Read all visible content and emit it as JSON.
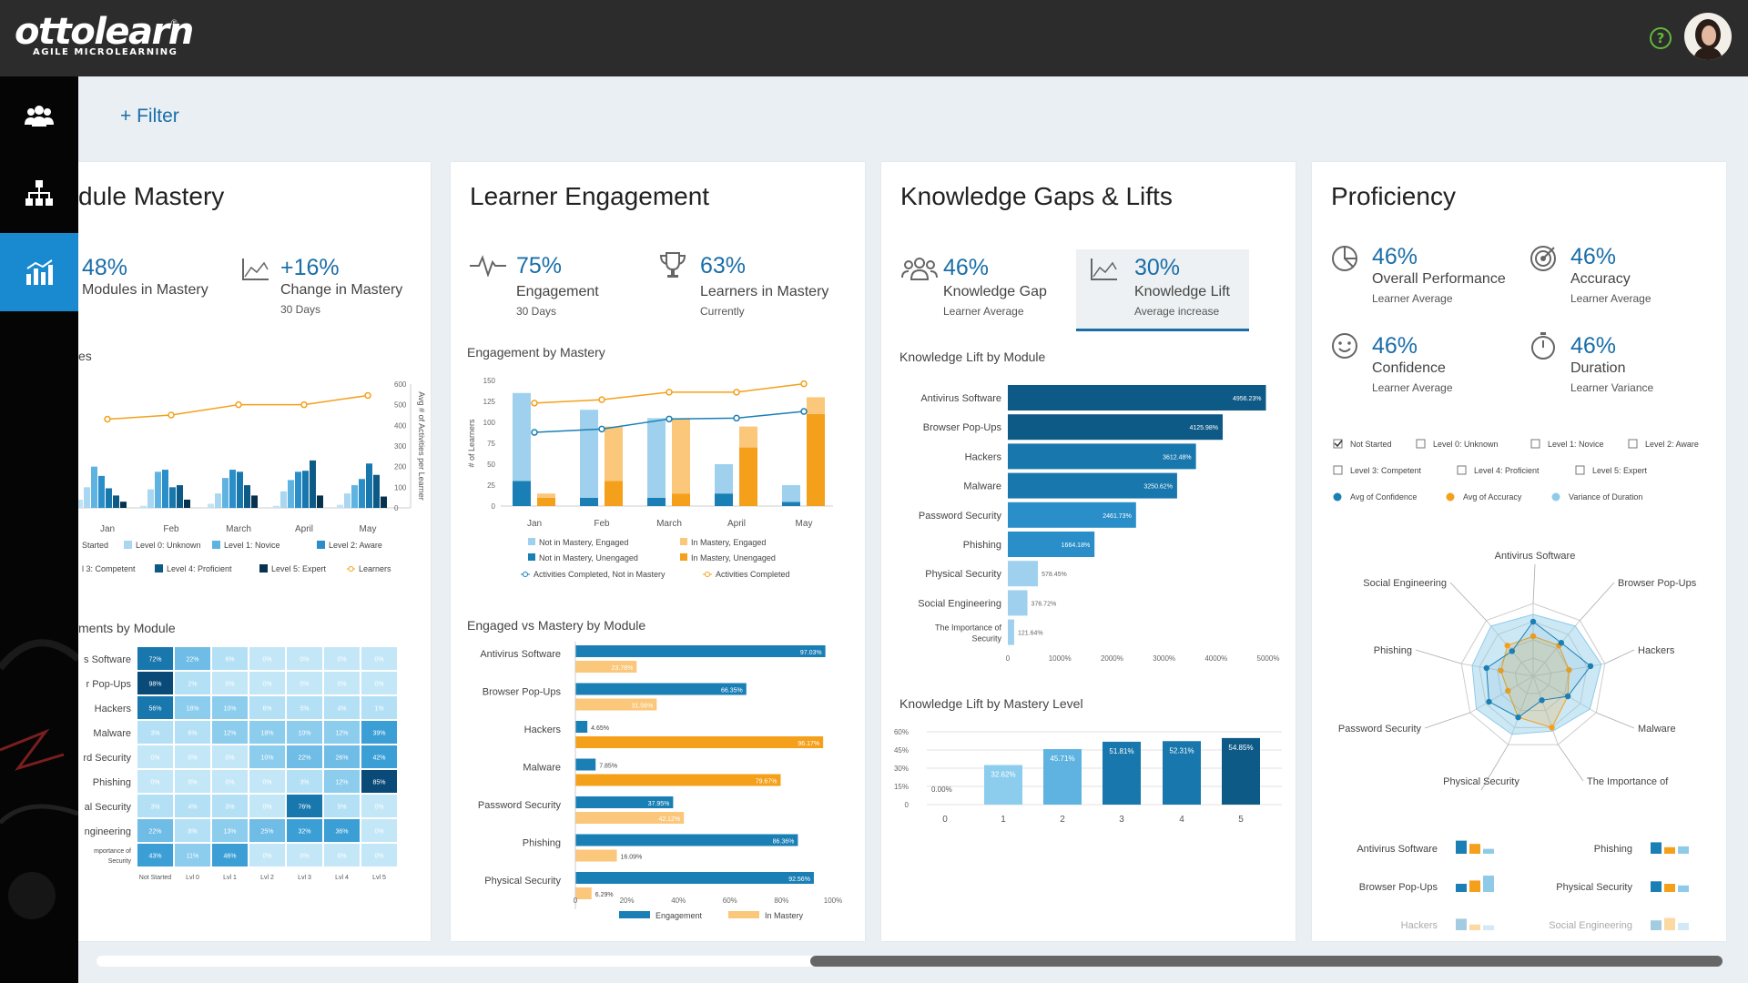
{
  "app": {
    "logo": "ottolearn",
    "logo_reg": "®",
    "tagline": "AGILE MICROLEARNING",
    "help_label": "?"
  },
  "sidebar": {
    "items": [
      {
        "icon": "users-icon"
      },
      {
        "icon": "org-chart-icon"
      },
      {
        "icon": "analytics-icon",
        "active": true
      }
    ]
  },
  "toolbar": {
    "filter_label": "+ Filter"
  },
  "mastery": {
    "title": "dule Mastery",
    "stat1": {
      "value": "48%",
      "label": "Modules in Mastery"
    },
    "stat2": {
      "value": "+16%",
      "label": "Change in Mastery",
      "sub": "30 Days"
    },
    "chart_title": "es",
    "heat_title": "ments by Module",
    "chart_data": [
      {
        "type": "bar",
        "title": "",
        "x": [
          "Jan",
          "Feb",
          "March",
          "April",
          "May"
        ],
        "ylabel_right": "Avg # of Activities per Learner",
        "ylim": [
          0,
          600
        ],
        "y2_ticks": [
          "0",
          "100",
          "200",
          "300",
          "400",
          "500",
          "600"
        ],
        "legend": [
          "Started",
          "Level 0: Unknown",
          "Level 1: Novice",
          "Level 2: Aware",
          "l 3: Competent",
          "Level 4: Proficient",
          "Level 5: Expert",
          "Learners"
        ],
        "series": [
          {
            "name": "Started",
            "values": [
              40,
              10,
              20,
              10,
              15
            ]
          },
          {
            "name": "Level 0: Unknown",
            "values": [
              100,
              90,
              70,
              80,
              70
            ]
          },
          {
            "name": "Level 1: Novice",
            "values": [
              200,
              175,
              145,
              135,
              110
            ]
          },
          {
            "name": "Level 2: Aware",
            "values": [
              155,
              185,
              185,
              175,
              140
            ]
          },
          {
            "name": "l 3: Competent",
            "values": [
              95,
              100,
              175,
              180,
              215
            ]
          },
          {
            "name": "Level 4: Proficient",
            "values": [
              60,
              110,
              110,
              230,
              160
            ]
          },
          {
            "name": "Level 5: Expert",
            "values": [
              30,
              40,
              60,
              60,
              55
            ]
          },
          {
            "name": "Learners",
            "values": [
              430,
              450,
              500,
              500,
              545
            ]
          }
        ]
      },
      {
        "type": "heatmap",
        "title": "",
        "x": [
          "Not Started",
          "Lvl 0",
          "Lvl 1",
          "Lvl 2",
          "Lvl 3",
          "Lvl 4",
          "Lvl 5"
        ],
        "y": [
          "s Software",
          "r Pop-Ups",
          "Hackers",
          "Malware",
          "rd Security",
          "Phishing",
          "al Security",
          "ngineering",
          "mportance of Security"
        ],
        "cells": [
          [
            "72%",
            "22%",
            "6%",
            "0%",
            "0%",
            "0%",
            "0%"
          ],
          [
            "98%",
            "2%",
            "0%",
            "0%",
            "0%",
            "0%",
            "0%"
          ],
          [
            "56%",
            "18%",
            "10%",
            "6%",
            "5%",
            "4%",
            "1%"
          ],
          [
            "3%",
            "6%",
            "12%",
            "18%",
            "10%",
            "12%",
            "39%"
          ],
          [
            "0%",
            "0%",
            "0%",
            "10%",
            "22%",
            "26%",
            "42%"
          ],
          [
            "0%",
            "0%",
            "0%",
            "0%",
            "3%",
            "12%",
            "85%"
          ],
          [
            "3%",
            "4%",
            "3%",
            "0%",
            "76%",
            "5%",
            "0%"
          ],
          [
            "22%",
            "8%",
            "13%",
            "25%",
            "32%",
            "36%",
            "0%"
          ],
          [
            "43%",
            "11%",
            "46%",
            "0%",
            "0%",
            "0%",
            "0%"
          ]
        ]
      }
    ]
  },
  "engagement": {
    "title": "Learner Engagement",
    "stat1": {
      "value": "75%",
      "label": "Engagement",
      "sub": "30 Days"
    },
    "stat2": {
      "value": "63%",
      "label": "Learners in Mastery",
      "sub": "Currently"
    },
    "chart1_title": "Engagement by Mastery",
    "chart2_title": "Engaged vs Mastery by Module",
    "chart_data": [
      {
        "type": "bar",
        "title": "",
        "x": [
          "Jan",
          "Feb",
          "March",
          "April",
          "May"
        ],
        "ylabel": "# of Learners",
        "y_ticks": [
          "0",
          "25",
          "50",
          "75",
          "100",
          "125",
          "150"
        ],
        "ylim": [
          0,
          150
        ],
        "legend": [
          "Not in Mastery, Engaged",
          "Not in Mastery, Unengaged",
          "Activities Completed, Not in Mastery",
          "In Mastery, Engaged",
          "In Mastery, Unengaged",
          "Activities Completed"
        ],
        "series": [
          {
            "name": "Not in Mastery, Unengaged",
            "values": [
              30,
              10,
              10,
              15,
              5
            ]
          },
          {
            "name": "Not in Mastery, Engaged",
            "values": [
              105,
              105,
              95,
              35,
              20
            ]
          },
          {
            "name": "In Mastery, Unengaged",
            "values": [
              10,
              30,
              15,
              70,
              110
            ]
          },
          {
            "name": "In Mastery, Engaged",
            "values": [
              5,
              65,
              90,
              25,
              20
            ]
          },
          {
            "name": "Activities Completed, Not in Mastery",
            "values": [
              88,
              92,
              104,
              105,
              113
            ]
          },
          {
            "name": "Activities Completed",
            "values": [
              123,
              127,
              136,
              136,
              146
            ]
          }
        ]
      },
      {
        "type": "bar",
        "title": "",
        "orientation": "horizontal",
        "categories": [
          "Antivirus Software",
          "Browser Pop-Ups",
          "Hackers",
          "Malware",
          "Password Security",
          "Phishing",
          "Physical Security"
        ],
        "x_ticks": [
          "0",
          "20%",
          "40%",
          "60%",
          "80%",
          "100%"
        ],
        "legend": [
          "Engagement",
          "In Mastery"
        ],
        "series": [
          {
            "name": "Engagement",
            "values": [
              97.03,
              66.35,
              4.65,
              7.85,
              37.95,
              86.36,
              92.56
            ],
            "labels": [
              "97.03%",
              "66.35%",
              "4.65%",
              "7.85%",
              "37.95%",
              "86.36%",
              "92.56%"
            ]
          },
          {
            "name": "In Mastery",
            "values": [
              23.78,
              31.56,
              96.17,
              79.67,
              42.12,
              16.09,
              6.29
            ],
            "labels": [
              "23.78%",
              "31.56%",
              "96.17%",
              "79.67%",
              "42.12%",
              "16.09%",
              "6.29%"
            ]
          }
        ]
      }
    ]
  },
  "gaps": {
    "title": "Knowledge Gaps & Lifts",
    "stat1": {
      "value": "46%",
      "label": "Knowledge Gap",
      "sub": "Learner Average"
    },
    "stat2": {
      "value": "30%",
      "label": "Knowledge Lift",
      "sub": "Average increase"
    },
    "chart1_title": "Knowledge Lift by Module",
    "chart2_title": "Knowledge Lift by Mastery Level",
    "chart_data": [
      {
        "type": "bar",
        "title": "",
        "orientation": "horizontal",
        "categories": [
          "Antivirus Software",
          "Browser Pop-Ups",
          "Hackers",
          "Malware",
          "Password Security",
          "Phishing",
          "Physical Security",
          "Social Engineering",
          "The Importance of Security"
        ],
        "values": [
          4956.23,
          4125.98,
          3612.48,
          3250.62,
          2461.73,
          1664.18,
          578.45,
          376.72,
          121.64
        ],
        "labels": [
          "4956.23%",
          "4125.98%",
          "3612.48%",
          "3250.62%",
          "2461.73%",
          "1664.18%",
          "578.45%",
          "376.72%",
          "121.64%"
        ],
        "x_ticks": [
          "0",
          "1000%",
          "2000%",
          "3000%",
          "4000%",
          "5000%"
        ],
        "xlim": [
          0,
          5000
        ]
      },
      {
        "type": "bar",
        "title": "",
        "x": [
          "0",
          "1",
          "2",
          "3",
          "4",
          "5"
        ],
        "values": [
          0,
          32.62,
          45.71,
          51.81,
          52.31,
          54.85
        ],
        "labels": [
          "0.00%",
          "32.62%",
          "45.71%",
          "51.81%",
          "52.31%",
          "54.85%"
        ],
        "y_ticks": [
          "0",
          "15%",
          "30%",
          "45%",
          "60%"
        ],
        "ylim": [
          0,
          60
        ]
      }
    ]
  },
  "proficiency": {
    "title": "Proficiency",
    "stats": [
      {
        "value": "46%",
        "label": "Overall Performance",
        "sub": "Learner Average",
        "icon": "pie-chart-icon"
      },
      {
        "value": "46%",
        "label": "Accuracy",
        "sub": "Learner Average",
        "icon": "target-icon"
      },
      {
        "value": "46%",
        "label": "Confidence",
        "sub": "Learner Average",
        "icon": "smiley-icon"
      },
      {
        "value": "46%",
        "label": "Duration",
        "sub": "Learner Variance",
        "icon": "stopwatch-icon"
      }
    ],
    "filters": [
      {
        "label": "Not Started",
        "checked": true
      },
      {
        "label": "Level 0: Unknown",
        "checked": false
      },
      {
        "label": "Level 1: Novice",
        "checked": false
      },
      {
        "label": "Level 2: Aware",
        "checked": false
      },
      {
        "label": "Level 3: Competent",
        "checked": false
      },
      {
        "label": "Level 4: Proficient",
        "checked": false
      },
      {
        "label": "Level 5: Expert",
        "checked": false
      }
    ],
    "colors": {
      "confidence": "#1a7fb5",
      "accuracy": "#f5a01a",
      "duration": "#8fcbe9"
    },
    "chart_data": [
      {
        "type": "radar",
        "title": "",
        "axes": [
          "Antivirus Software",
          "Browser Pop-Ups",
          "Hackers",
          "Malware",
          "The Importance of",
          "Physical Security",
          "Password Security",
          "Phishing",
          "Social Engineering"
        ],
        "legend": [
          "Avg of Confidence",
          "Avg of Accuracy",
          "Variance of Duration"
        ],
        "series": [
          {
            "name": "Avg of Confidence",
            "values": [
              0.75,
              0.6,
              0.8,
              0.55,
              0.35,
              0.6,
              0.7,
              0.65,
              0.45
            ]
          },
          {
            "name": "Avg of Accuracy",
            "values": [
              0.55,
              0.55,
              0.5,
              0.55,
              0.75,
              0.6,
              0.4,
              0.45,
              0.55
            ]
          },
          {
            "name": "Variance of Duration",
            "values": [
              0.85,
              0.9,
              0.95,
              0.9,
              0.8,
              0.85,
              0.9,
              0.85,
              0.9
            ]
          }
        ]
      },
      {
        "type": "bar",
        "title": "",
        "categories": [
          "Antivirus Software",
          "Phishing",
          "Browser Pop-Ups",
          "Physical Security",
          "Hackers",
          "Social Engineering"
        ],
        "series": [
          {
            "name": "Avg of Confidence",
            "values": [
              0.8,
              0.7,
              0.5,
              0.65,
              0.7,
              0.6
            ]
          },
          {
            "name": "Avg of Accuracy",
            "values": [
              0.6,
              0.4,
              0.7,
              0.5,
              0.35,
              0.75
            ]
          },
          {
            "name": "Variance of Duration",
            "values": [
              0.3,
              0.45,
              1.0,
              0.4,
              0.3,
              0.45
            ]
          }
        ]
      }
    ]
  }
}
